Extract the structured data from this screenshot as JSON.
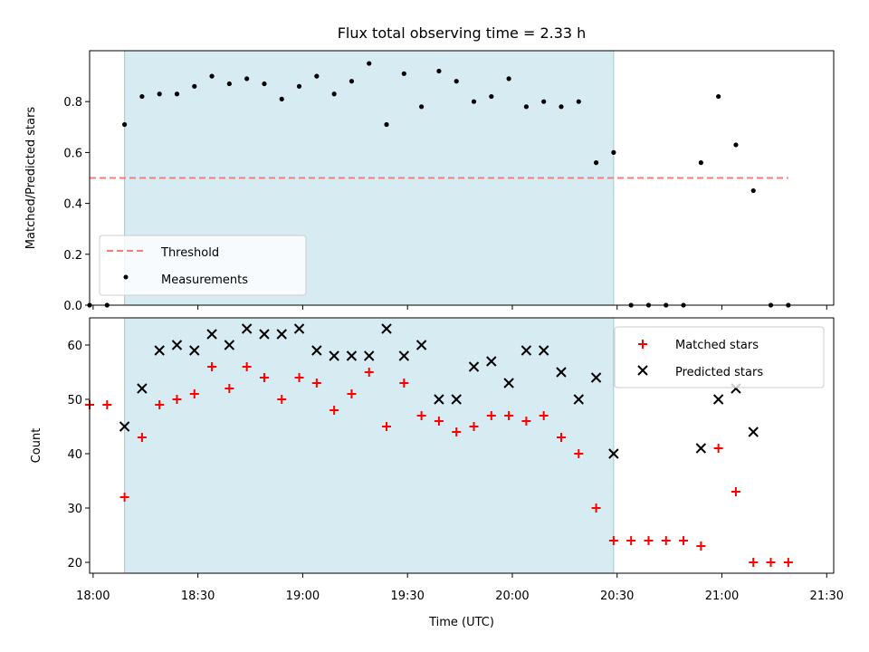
{
  "chart_data": [
    {
      "type": "scatter",
      "title": "Flux total observing time = 2.33 h",
      "xlabel": "",
      "ylabel": "Matched/Predicted stars",
      "ylim": [
        0,
        1.0
      ],
      "yticks": [
        0.0,
        0.2,
        0.4,
        0.6,
        0.8
      ],
      "ytick_labels": [
        "0.0",
        "0.2",
        "0.4",
        "0.6",
        "0.8"
      ],
      "xlim": [
        "17:59",
        "21:32"
      ],
      "highlight_span": [
        "18:09",
        "20:29"
      ],
      "legend_position": "lower-left",
      "threshold": {
        "name": "Threshold",
        "value": 0.5,
        "x_range": [
          "17:59",
          "21:19"
        ],
        "color": "#f08080"
      },
      "series": [
        {
          "name": "Measurements",
          "color": "#000000",
          "x": [
            "17:59",
            "18:04",
            "18:09",
            "18:14",
            "18:19",
            "18:24",
            "18:29",
            "18:34",
            "18:39",
            "18:44",
            "18:49",
            "18:54",
            "18:59",
            "19:04",
            "19:09",
            "19:14",
            "19:19",
            "19:24",
            "19:29",
            "19:34",
            "19:39",
            "19:44",
            "19:49",
            "19:54",
            "19:59",
            "20:04",
            "20:09",
            "20:14",
            "20:19",
            "20:24",
            "20:29",
            "20:34",
            "20:39",
            "20:44",
            "20:49",
            "20:54",
            "20:59",
            "21:04",
            "21:09",
            "21:14",
            "21:19"
          ],
          "y": [
            0.0,
            0.0,
            0.71,
            0.82,
            0.83,
            0.83,
            0.86,
            0.9,
            0.87,
            0.89,
            0.87,
            0.81,
            0.86,
            0.9,
            0.83,
            0.88,
            0.95,
            0.71,
            0.91,
            0.78,
            0.92,
            0.88,
            0.8,
            0.82,
            0.89,
            0.78,
            0.8,
            0.78,
            0.8,
            0.56,
            0.6,
            0.0,
            0.0,
            0.0,
            0.0,
            0.56,
            0.82,
            0.63,
            0.45,
            0.0,
            0.0
          ]
        }
      ]
    },
    {
      "type": "scatter",
      "title": "",
      "xlabel": "Time (UTC)",
      "ylabel": "Count",
      "ylim": [
        18,
        65
      ],
      "yticks": [
        20,
        30,
        40,
        50,
        60
      ],
      "ytick_labels": [
        "20",
        "30",
        "40",
        "50",
        "60"
      ],
      "xlim": [
        "17:59",
        "21:32"
      ],
      "xticks": [
        "18:00",
        "18:30",
        "19:00",
        "19:30",
        "20:00",
        "20:30",
        "21:00",
        "21:30"
      ],
      "highlight_span": [
        "18:09",
        "20:29"
      ],
      "legend_position": "top-right",
      "series": [
        {
          "name": "Matched stars",
          "marker": "+",
          "color": "#ff0000",
          "x": [
            "17:59",
            "18:04",
            "18:09",
            "18:14",
            "18:19",
            "18:24",
            "18:29",
            "18:34",
            "18:39",
            "18:44",
            "18:49",
            "18:54",
            "18:59",
            "19:04",
            "19:09",
            "19:14",
            "19:19",
            "19:24",
            "19:29",
            "19:34",
            "19:39",
            "19:44",
            "19:49",
            "19:54",
            "19:59",
            "20:04",
            "20:09",
            "20:14",
            "20:19",
            "20:24",
            "20:29",
            "20:34",
            "20:39",
            "20:44",
            "20:49",
            "20:54",
            "20:59",
            "21:04",
            "21:09",
            "21:14",
            "21:19"
          ],
          "y": [
            49,
            49,
            32,
            43,
            49,
            50,
            51,
            56,
            52,
            56,
            54,
            50,
            54,
            53,
            48,
            51,
            55,
            45,
            53,
            47,
            46,
            44,
            45,
            47,
            47,
            46,
            47,
            43,
            40,
            30,
            24,
            24,
            24,
            24,
            24,
            23,
            41,
            33,
            20,
            20,
            20
          ]
        },
        {
          "name": "Predicted stars",
          "marker": "x",
          "color": "#000000",
          "x": [
            "18:09",
            "18:14",
            "18:19",
            "18:24",
            "18:29",
            "18:34",
            "18:39",
            "18:44",
            "18:49",
            "18:54",
            "18:59",
            "19:04",
            "19:09",
            "19:14",
            "19:19",
            "19:24",
            "19:29",
            "19:34",
            "19:39",
            "19:44",
            "19:49",
            "19:54",
            "19:59",
            "20:04",
            "20:09",
            "20:14",
            "20:19",
            "20:24",
            "20:29",
            "20:54",
            "20:59",
            "21:04",
            "21:09"
          ],
          "y": [
            45,
            52,
            59,
            60,
            59,
            62,
            60,
            63,
            62,
            62,
            63,
            59,
            58,
            58,
            58,
            63,
            58,
            60,
            50,
            50,
            56,
            57,
            53,
            59,
            59,
            55,
            50,
            54,
            40,
            41,
            50,
            52,
            44
          ]
        }
      ]
    }
  ]
}
